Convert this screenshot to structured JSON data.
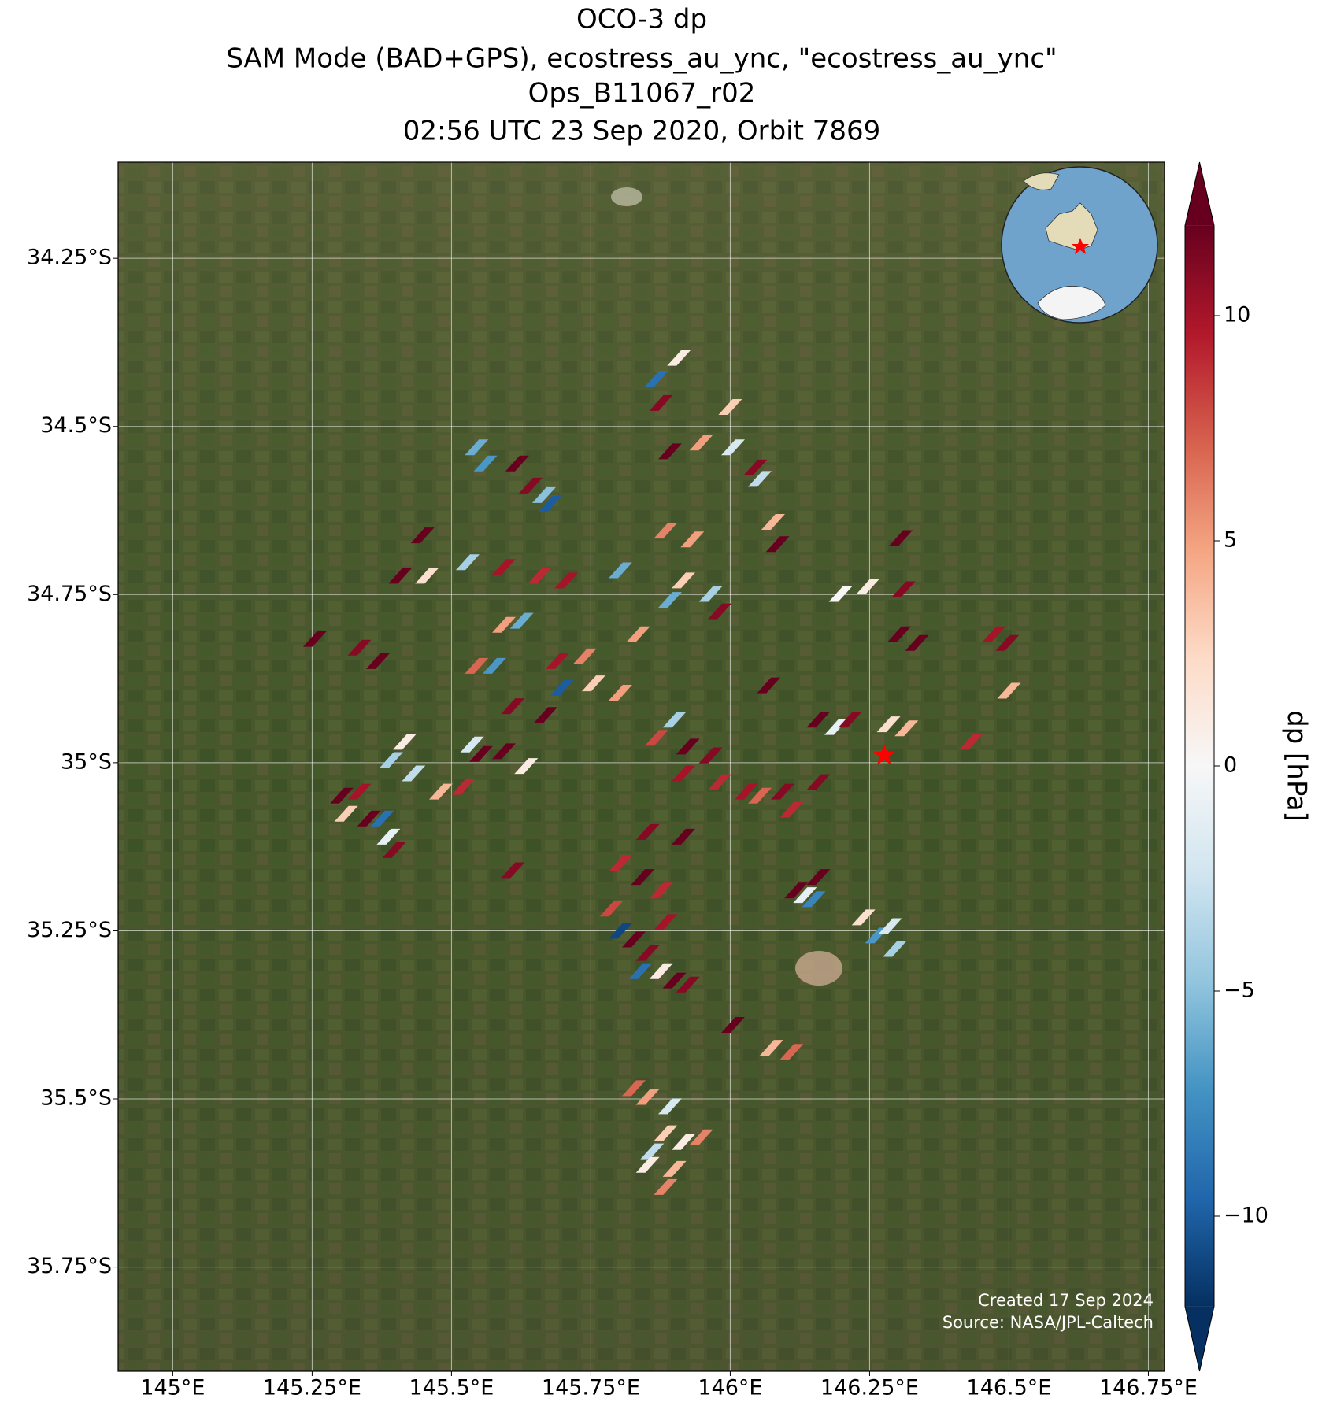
{
  "chart_data": {
    "type": "map-scatter",
    "title": [
      "OCO-3 dp",
      "SAM Mode (BAD+GPS), ecostress_au_ync, \"ecostress_au_ync\"",
      "Ops_B11067_r02",
      "02:56 UTC 23 Sep 2020, Orbit 7869"
    ],
    "xlim": [
      144.902,
      146.779
    ],
    "ylim": [
      -35.905,
      -34.107
    ],
    "xticks": [
      {
        "value": 145,
        "label": "145°E"
      },
      {
        "value": 145.25,
        "label": "145.25°E"
      },
      {
        "value": 145.5,
        "label": "145.5°E"
      },
      {
        "value": 145.75,
        "label": "145.75°E"
      },
      {
        "value": 146,
        "label": "146°E"
      },
      {
        "value": 146.25,
        "label": "146.25°E"
      },
      {
        "value": 146.5,
        "label": "146.5°E"
      },
      {
        "value": 146.75,
        "label": "146.75°E"
      }
    ],
    "yticks": [
      {
        "value": -34.25,
        "label": "34.25°S"
      },
      {
        "value": -34.5,
        "label": "34.5°S"
      },
      {
        "value": -34.75,
        "label": "34.75°S"
      },
      {
        "value": -35,
        "label": "35°S"
      },
      {
        "value": -35.25,
        "label": "35.25°S"
      },
      {
        "value": -35.5,
        "label": "35.5°S"
      },
      {
        "value": -35.75,
        "label": "35.75°S"
      }
    ],
    "grid": true,
    "colorbar": {
      "label": "dp [hPa]",
      "clim": [
        -12,
        12
      ],
      "colormap": [
        "#053061",
        "#2166ac",
        "#4393c3",
        "#92c5de",
        "#d1e5f0",
        "#f7f7f7",
        "#fddbc7",
        "#f4a582",
        "#d6604d",
        "#b2182b",
        "#67001f"
      ],
      "ticks": [
        {
          "value": -10,
          "label": "−10"
        },
        {
          "value": -5,
          "label": "−5"
        },
        0,
        5,
        10
      ]
    },
    "target": {
      "lon": 146.276,
      "lat": -34.989,
      "color": "#ff0000"
    },
    "credits": [
      "Created 17 Sep 2024",
      "Source: NASA/JPL-Caltech"
    ],
    "x": [
      145.908,
      145.868,
      145.876,
      146.0,
      145.892,
      145.948,
      146.005,
      146.045,
      146.053,
      145.545,
      145.561,
      145.618,
      145.642,
      145.666,
      145.677,
      146.077,
      146.085,
      145.884,
      145.932,
      145.448,
      145.408,
      145.456,
      145.529,
      145.594,
      145.658,
      145.706,
      145.803,
      145.916,
      145.965,
      145.892,
      145.981,
      145.594,
      145.626,
      145.255,
      145.335,
      145.368,
      145.545,
      145.577,
      145.69,
      145.739,
      145.755,
      145.803,
      145.835,
      145.698,
      145.61,
      145.669,
      146.069,
      145.9,
      145.868,
      145.924,
      145.965,
      145.916,
      145.981,
      146.029,
      146.053,
      146.094,
      146.11,
      146.158,
      146.158,
      146.19,
      146.215,
      146.284,
      146.316,
      146.198,
      146.247,
      146.306,
      146.311,
      146.303,
      146.335,
      146.473,
      146.497,
      146.5,
      146.432,
      145.416,
      145.392,
      145.432,
      145.481,
      145.521,
      145.537,
      145.553,
      145.594,
      145.634,
      145.303,
      145.335,
      145.311,
      145.352,
      145.376,
      145.387,
      145.397,
      145.61,
      145.852,
      145.916,
      145.803,
      145.843,
      145.876,
      145.787,
      145.803,
      145.827,
      145.852,
      145.839,
      145.884,
      145.876,
      145.9,
      145.924,
      146.118,
      146.134,
      146.15,
      146.158,
      146.239,
      146.263,
      146.287,
      146.295,
      146.005,
      146.074,
      146.11,
      145.827,
      145.852,
      145.892,
      145.884,
      145.916,
      145.948,
      145.86,
      145.9,
      145.852,
      145.884
    ],
    "y": [
      -34.398,
      -34.429,
      -34.465,
      -34.471,
      -34.537,
      -34.524,
      -34.531,
      -34.561,
      -34.578,
      -34.531,
      -34.555,
      -34.555,
      -34.588,
      -34.602,
      -34.615,
      -34.642,
      -34.675,
      -34.655,
      -34.668,
      -34.662,
      -34.722,
      -34.722,
      -34.702,
      -34.709,
      -34.722,
      -34.729,
      -34.714,
      -34.729,
      -34.749,
      -34.758,
      -34.775,
      -34.795,
      -34.789,
      -34.816,
      -34.829,
      -34.849,
      -34.856,
      -34.856,
      -34.849,
      -34.842,
      -34.882,
      -34.896,
      -34.809,
      -34.889,
      -34.916,
      -34.929,
      -34.885,
      -34.936,
      -34.963,
      -34.976,
      -34.989,
      -35.016,
      -35.029,
      -35.043,
      -35.049,
      -35.043,
      -35.07,
      -35.029,
      -34.936,
      -34.947,
      -34.936,
      -34.943,
      -34.949,
      -34.749,
      -34.738,
      -34.666,
      -34.742,
      -34.809,
      -34.822,
      -34.809,
      -34.822,
      -34.893,
      -34.969,
      -34.969,
      -34.996,
      -35.016,
      -35.043,
      -35.036,
      -34.973,
      -34.987,
      -34.983,
      -35.005,
      -35.049,
      -35.043,
      -35.076,
      -35.083,
      -35.083,
      -35.11,
      -35.13,
      -35.16,
      -35.103,
      -35.11,
      -35.15,
      -35.17,
      -35.19,
      -35.217,
      -35.25,
      -35.263,
      -35.283,
      -35.31,
      -35.237,
      -35.31,
      -35.324,
      -35.33,
      -35.19,
      -35.197,
      -35.203,
      -35.17,
      -35.23,
      -35.257,
      -35.243,
      -35.277,
      -35.39,
      -35.424,
      -35.43,
      -35.484,
      -35.497,
      -35.511,
      -35.551,
      -35.564,
      -35.557,
      -35.578,
      -35.604,
      -35.598,
      -35.631
    ],
    "values": [
      1,
      -9,
      11,
      3,
      12,
      5,
      -2,
      11,
      -3,
      -6,
      -7,
      12,
      11,
      -5,
      -10,
      4,
      12,
      6,
      5,
      12,
      12,
      2,
      -4,
      10,
      9,
      10,
      -6,
      3,
      -4,
      -6,
      11,
      5,
      -6,
      12,
      11,
      12,
      7,
      -7,
      10,
      6,
      3,
      5,
      5,
      -10,
      11,
      12,
      12,
      -4,
      8,
      12,
      11,
      10,
      9,
      10,
      7,
      11,
      9,
      11,
      12,
      -1,
      11,
      2,
      4,
      0,
      1,
      12,
      11,
      12,
      12,
      10,
      11,
      4,
      9,
      1,
      -4,
      -3,
      4,
      9,
      -2,
      12,
      12,
      1,
      12,
      10,
      3,
      12,
      -9,
      -1,
      11,
      11,
      11,
      12,
      9,
      12,
      9,
      8,
      -11,
      12,
      11,
      -9,
      10,
      1,
      12,
      11,
      12,
      -1,
      -8,
      12,
      2,
      -7,
      -2,
      -4,
      12,
      4,
      7,
      7,
      5,
      -2,
      3,
      1,
      6,
      -3,
      4,
      1,
      6
    ]
  }
}
